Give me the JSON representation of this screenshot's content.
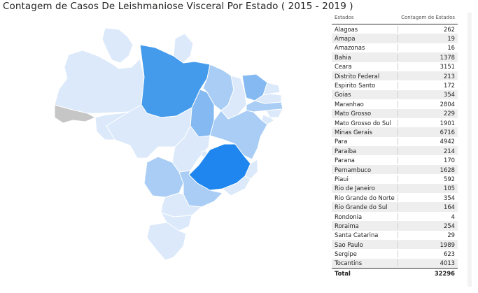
{
  "title": "Contagem de Casos De Leishmaniose Visceral Por Estado ( 2015 - 2019 )",
  "table": {
    "header": {
      "state": "Estados",
      "count": "Contagem de Estados"
    },
    "rows": [
      {
        "state": "Alagoas",
        "count": "262"
      },
      {
        "state": "Amapa",
        "count": "19"
      },
      {
        "state": "Amazonas",
        "count": "16"
      },
      {
        "state": "Bahia",
        "count": "1378"
      },
      {
        "state": "Ceara",
        "count": "3151"
      },
      {
        "state": "Distrito Federal",
        "count": "213"
      },
      {
        "state": "Espirito Santo",
        "count": "172"
      },
      {
        "state": "Goias",
        "count": "354"
      },
      {
        "state": "Maranhao",
        "count": "2804"
      },
      {
        "state": "Mato Grosso",
        "count": "229"
      },
      {
        "state": "Mato Grosso do Sul",
        "count": "1901"
      },
      {
        "state": "Minas Gerais",
        "count": "6716"
      },
      {
        "state": "Para",
        "count": "4942"
      },
      {
        "state": "Paraiba",
        "count": "214"
      },
      {
        "state": "Parana",
        "count": "170"
      },
      {
        "state": "Pernambuco",
        "count": "1628"
      },
      {
        "state": "Piaui",
        "count": "592"
      },
      {
        "state": "Rio de Janeiro",
        "count": "105"
      },
      {
        "state": "Rio Grande do Norte",
        "count": "354"
      },
      {
        "state": "Rio Grande do Sul",
        "count": "164"
      },
      {
        "state": "Rondonia",
        "count": "4"
      },
      {
        "state": "Roraima",
        "count": "254"
      },
      {
        "state": "Santa Catarina",
        "count": "29"
      },
      {
        "state": "Sao Paulo",
        "count": "1989"
      },
      {
        "state": "Sergipe",
        "count": "623"
      },
      {
        "state": "Tocantins",
        "count": "4013"
      }
    ],
    "total": {
      "label": "Total",
      "count": "32296"
    }
  },
  "map": {
    "colors": {
      "lowest": "#dbe9fa",
      "low": "#a9cdf5",
      "mid": "#84baf1",
      "high": "#449bec",
      "highest": "#1e86ee",
      "no_data": "#c6c6c6"
    },
    "state_values": {
      "Alagoas": 262,
      "Amapa": 19,
      "Amazonas": 16,
      "Bahia": 1378,
      "Ceara": 3151,
      "Distrito Federal": 213,
      "Espirito Santo": 172,
      "Goias": 354,
      "Maranhao": 2804,
      "Mato Grosso": 229,
      "Mato Grosso do Sul": 1901,
      "Minas Gerais": 6716,
      "Para": 4942,
      "Paraiba": 214,
      "Parana": 170,
      "Pernambuco": 1628,
      "Piaui": 592,
      "Rio de Janeiro": 105,
      "Rio Grande do Norte": 354,
      "Rio Grande do Sul": 164,
      "Rondonia": 4,
      "Roraima": 254,
      "Santa Catarina": 29,
      "Sao Paulo": 1989,
      "Sergipe": 623,
      "Tocantins": 4013
    }
  }
}
